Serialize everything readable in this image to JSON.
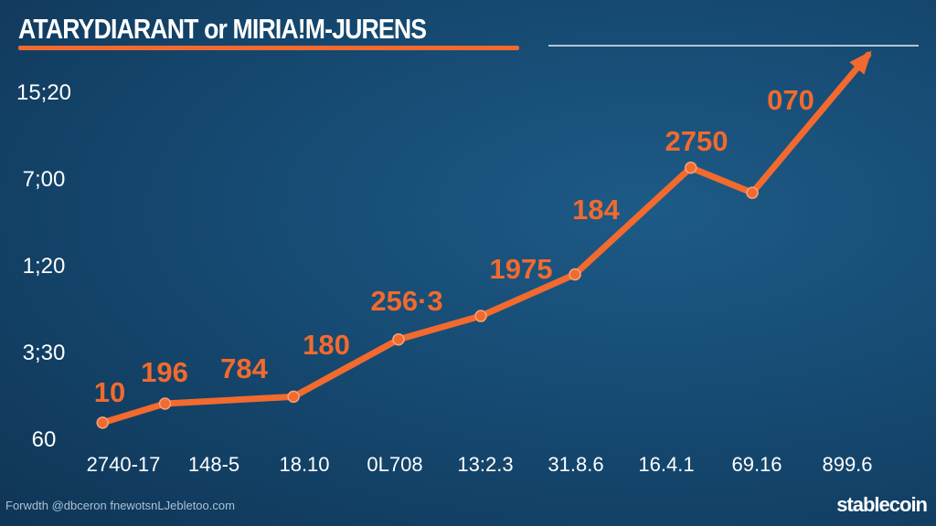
{
  "chart_data": {
    "type": "line",
    "title": "ATARYDIARANT or MIRIA!M-JURENS",
    "xlabel": "",
    "ylabel": "",
    "x_tick_labels": [
      "2740-17",
      "148-5",
      "18.10",
      "0L708",
      "13:2.3",
      "31.8.6",
      "16.4.1",
      "69.16",
      "899.6"
    ],
    "y_tick_labels": [
      "60",
      "3;30",
      "1;20",
      "7;00",
      "15;20"
    ],
    "points": [
      {
        "x": -0.23,
        "y": 0.18,
        "label": "10"
      },
      {
        "x": 0.46,
        "y": 0.4,
        "label": "196"
      },
      {
        "x": 1.88,
        "y": 0.48,
        "label": "784"
      },
      {
        "x": 3.04,
        "y": 1.14,
        "label": "180"
      },
      {
        "x": 3.95,
        "y": 1.41,
        "label": "256·3"
      },
      {
        "x": 4.99,
        "y": 1.89,
        "label": "1975"
      },
      {
        "x": 6.27,
        "y": 3.12,
        "label": "184"
      },
      {
        "x": 6.95,
        "y": 2.83,
        "label": "2750"
      },
      {
        "x": 8.23,
        "y": 4.42,
        "label": "070"
      }
    ],
    "xlim": [
      -0.4,
      8.6
    ],
    "ylim": [
      0,
      4.6
    ],
    "grid": false,
    "line_color": "#f26a2e",
    "label_color": "#f26a2e",
    "end_arrow": true
  },
  "footer": {
    "text": "Forwdth @dbceron   fnewotsnLJebletoo.com"
  },
  "brand": {
    "name": "stablecoin"
  }
}
